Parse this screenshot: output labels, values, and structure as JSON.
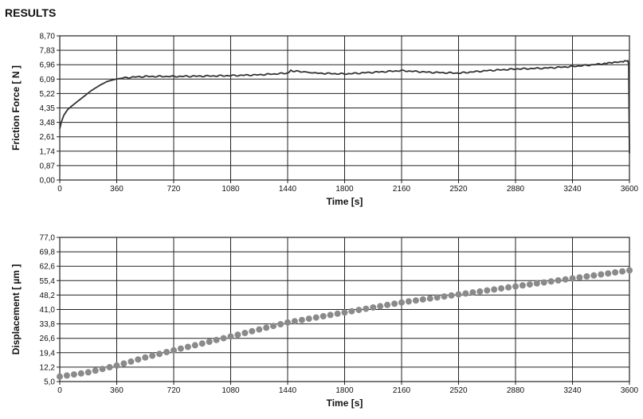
{
  "page": {
    "title": "RESULTS"
  },
  "chart_data": [
    {
      "type": "line",
      "title": "",
      "xlabel": "Time [s]",
      "ylabel": "Friction Force [ N ]",
      "xlim": [
        0,
        3600
      ],
      "ylim": [
        0,
        8.7
      ],
      "x_ticks": [
        "0",
        "360",
        "720",
        "1080",
        "1440",
        "1800",
        "2160",
        "2520",
        "2880",
        "3240",
        "3600"
      ],
      "y_ticks": [
        "0,00",
        "0,87",
        "1,74",
        "2,61",
        "3,48",
        "4,35",
        "5,22",
        "6,09",
        "6,96",
        "7,83",
        "8,70"
      ],
      "grid": true,
      "series": [
        {
          "color": "#333333",
          "x": [
            0,
            10,
            25,
            50,
            80,
            120,
            160,
            200,
            250,
            300,
            360,
            420,
            480,
            540,
            600,
            720,
            900,
            1080,
            1260,
            1440,
            1460,
            1620,
            1800,
            1980,
            2160,
            2340,
            2520,
            2700,
            2880,
            3060,
            3240,
            3420,
            3500,
            3560,
            3590,
            3595,
            3600
          ],
          "y": [
            3.1,
            3.5,
            3.9,
            4.25,
            4.5,
            4.8,
            5.1,
            5.4,
            5.7,
            5.95,
            6.1,
            6.18,
            6.22,
            6.25,
            6.25,
            6.25,
            6.27,
            6.3,
            6.35,
            6.45,
            6.6,
            6.45,
            6.4,
            6.5,
            6.6,
            6.5,
            6.45,
            6.6,
            6.7,
            6.75,
            6.85,
            7.0,
            7.08,
            7.15,
            7.2,
            7.0,
            1.6
          ]
        }
      ]
    },
    {
      "type": "line",
      "title": "",
      "xlabel": "Time [s]",
      "ylabel": "Displacement [ µm ]",
      "xlim": [
        0,
        3600
      ],
      "ylim": [
        5.0,
        77.0
      ],
      "x_ticks": [
        "0",
        "360",
        "720",
        "1080",
        "1440",
        "1800",
        "2160",
        "2520",
        "2880",
        "3240",
        "3600"
      ],
      "y_ticks": [
        "5,0",
        "12,2",
        "19,4",
        "26,6",
        "33,8",
        "41,0",
        "48,2",
        "55,4",
        "62,6",
        "69,8",
        "77,0"
      ],
      "grid": true,
      "series": [
        {
          "color": "#8a8a8a",
          "x": [
            0,
            180,
            360,
            540,
            720,
            900,
            1080,
            1260,
            1440,
            1620,
            1800,
            1980,
            2160,
            2340,
            2520,
            2700,
            2880,
            3060,
            3240,
            3420,
            3600
          ],
          "y": [
            7.5,
            9.6,
            13.0,
            17.0,
            20.6,
            24.0,
            27.5,
            31.0,
            34.5,
            37.0,
            39.5,
            42.0,
            44.5,
            46.5,
            48.5,
            50.5,
            52.5,
            54.5,
            56.5,
            58.5,
            60.5
          ]
        }
      ]
    }
  ]
}
